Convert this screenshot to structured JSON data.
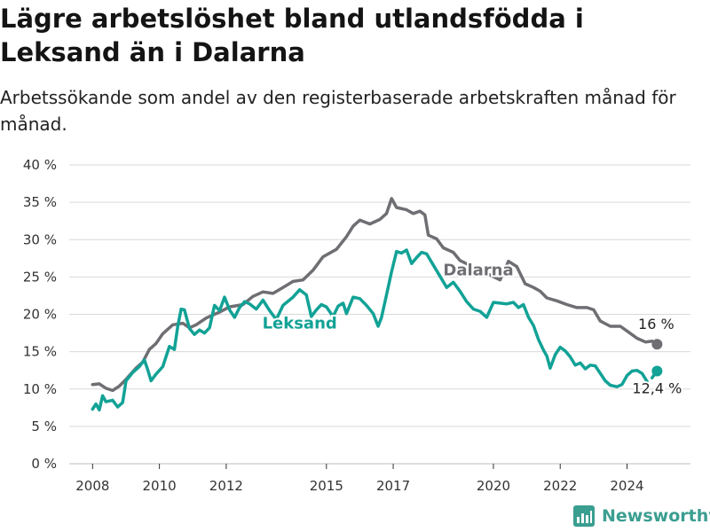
{
  "header": {
    "title": "Lägre arbetslöshet bland utlandsfödda i Leksand än i Dalarna",
    "subtitle": "Arbetssökande som andel av den registerbaserade arbetskraften månad för månad."
  },
  "brand": {
    "name": "Newsworthy"
  },
  "colors": {
    "dalarna": "#6e6e73",
    "leksand": "#12a296",
    "grid": "#d9d9d9",
    "axis": "#333333",
    "brand": "#3a9e90"
  },
  "chart_data": {
    "type": "line",
    "title": "Lägre arbetslöshet bland utlandsfödda i Leksand än i Dalarna",
    "subtitle": "Arbetssökande som andel av den registerbaserade arbetskraften månad för månad.",
    "xlabel": "",
    "ylabel": "",
    "xlim": [
      2007.3,
      2025.9
    ],
    "ylim": [
      0,
      40
    ],
    "yticks": [
      0,
      5,
      10,
      15,
      20,
      25,
      30,
      35,
      40
    ],
    "ytick_labels": [
      "0 %",
      "5 %",
      "10 %",
      "15 %",
      "20 %",
      "25 %",
      "30 %",
      "35 %",
      "40 %"
    ],
    "xticks": [
      2008,
      2010,
      2012,
      2015,
      2017,
      2020,
      2022,
      2024
    ],
    "xtick_labels": [
      "2008",
      "2010",
      "2012",
      "2015",
      "2017",
      "2020",
      "2022",
      "2024"
    ],
    "grid": "horizontal",
    "legend": "none",
    "series": [
      {
        "name": "Dalarna",
        "color": "#6e6e73",
        "end_label": "16 %",
        "points": [
          [
            2008.0,
            10.6
          ],
          [
            2008.2,
            10.7
          ],
          [
            2008.4,
            10.1
          ],
          [
            2008.6,
            9.8
          ],
          [
            2008.8,
            10.4
          ],
          [
            2009.0,
            11.3
          ],
          [
            2009.3,
            12.8
          ],
          [
            2009.5,
            13.6
          ],
          [
            2009.7,
            15.3
          ],
          [
            2009.9,
            16.1
          ],
          [
            2010.1,
            17.4
          ],
          [
            2010.4,
            18.6
          ],
          [
            2010.7,
            18.8
          ],
          [
            2010.9,
            18.2
          ],
          [
            2011.1,
            18.6
          ],
          [
            2011.4,
            19.5
          ],
          [
            2011.8,
            20.3
          ],
          [
            2012.1,
            21.0
          ],
          [
            2012.5,
            21.3
          ],
          [
            2012.8,
            22.4
          ],
          [
            2013.1,
            23.0
          ],
          [
            2013.4,
            22.8
          ],
          [
            2013.7,
            23.6
          ],
          [
            2014.0,
            24.4
          ],
          [
            2014.3,
            24.6
          ],
          [
            2014.6,
            25.9
          ],
          [
            2014.9,
            27.7
          ],
          [
            2015.3,
            28.7
          ],
          [
            2015.6,
            30.4
          ],
          [
            2015.8,
            31.8
          ],
          [
            2016.0,
            32.6
          ],
          [
            2016.3,
            32.1
          ],
          [
            2016.6,
            32.7
          ],
          [
            2016.8,
            33.5
          ],
          [
            2016.95,
            35.5
          ],
          [
            2017.1,
            34.3
          ],
          [
            2017.4,
            34.0
          ],
          [
            2017.6,
            33.5
          ],
          [
            2017.8,
            33.8
          ],
          [
            2017.95,
            33.3
          ],
          [
            2018.05,
            30.6
          ],
          [
            2018.3,
            30.1
          ],
          [
            2018.5,
            28.9
          ],
          [
            2018.8,
            28.3
          ],
          [
            2019.0,
            27.2
          ],
          [
            2020.2,
            24.6
          ],
          [
            2020.45,
            27.1
          ],
          [
            2020.7,
            26.4
          ],
          [
            2020.95,
            24.1
          ],
          [
            2021.2,
            23.6
          ],
          [
            2021.4,
            23.1
          ],
          [
            2021.6,
            22.2
          ],
          [
            2021.9,
            21.8
          ],
          [
            2022.2,
            21.3
          ],
          [
            2022.5,
            20.9
          ],
          [
            2022.8,
            20.9
          ],
          [
            2023.0,
            20.6
          ],
          [
            2023.2,
            19.1
          ],
          [
            2023.5,
            18.4
          ],
          [
            2023.8,
            18.4
          ],
          [
            2024.05,
            17.6
          ],
          [
            2024.3,
            16.8
          ],
          [
            2024.55,
            16.3
          ],
          [
            2024.75,
            16.4
          ],
          [
            2024.9,
            16.0
          ]
        ]
      },
      {
        "name": "Leksand",
        "color": "#12a296",
        "end_label": "12,4 %",
        "points": [
          [
            2008.0,
            7.3
          ],
          [
            2008.1,
            8.0
          ],
          [
            2008.2,
            7.2
          ],
          [
            2008.3,
            9.1
          ],
          [
            2008.4,
            8.3
          ],
          [
            2008.6,
            8.5
          ],
          [
            2008.75,
            7.6
          ],
          [
            2008.9,
            8.2
          ],
          [
            2009.0,
            11.1
          ],
          [
            2009.2,
            12.2
          ],
          [
            2009.4,
            13.0
          ],
          [
            2009.55,
            13.9
          ],
          [
            2009.65,
            12.6
          ],
          [
            2009.75,
            11.1
          ],
          [
            2009.9,
            12.0
          ],
          [
            2010.1,
            13.0
          ],
          [
            2010.3,
            15.7
          ],
          [
            2010.45,
            15.3
          ],
          [
            2010.55,
            18.4
          ],
          [
            2010.65,
            20.7
          ],
          [
            2010.75,
            20.6
          ],
          [
            2010.9,
            18.1
          ],
          [
            2011.05,
            17.3
          ],
          [
            2011.2,
            17.9
          ],
          [
            2011.35,
            17.5
          ],
          [
            2011.5,
            18.2
          ],
          [
            2011.65,
            21.2
          ],
          [
            2011.8,
            20.5
          ],
          [
            2011.95,
            22.3
          ],
          [
            2012.1,
            20.6
          ],
          [
            2012.25,
            19.6
          ],
          [
            2012.4,
            20.9
          ],
          [
            2012.55,
            21.7
          ],
          [
            2012.7,
            21.4
          ],
          [
            2012.9,
            20.7
          ],
          [
            2013.1,
            21.9
          ],
          [
            2013.3,
            20.5
          ],
          [
            2013.5,
            19.3
          ],
          [
            2013.7,
            21.2
          ],
          [
            2014.0,
            22.3
          ],
          [
            2014.2,
            23.3
          ],
          [
            2014.4,
            22.6
          ],
          [
            2014.55,
            19.7
          ],
          [
            2014.7,
            20.6
          ],
          [
            2014.85,
            21.3
          ],
          [
            2015.0,
            21.0
          ],
          [
            2015.2,
            19.7
          ],
          [
            2015.35,
            21.1
          ],
          [
            2015.5,
            21.5
          ],
          [
            2015.6,
            20.1
          ],
          [
            2015.8,
            22.3
          ],
          [
            2016.0,
            22.1
          ],
          [
            2016.2,
            21.2
          ],
          [
            2016.4,
            20.1
          ],
          [
            2016.55,
            18.4
          ],
          [
            2016.65,
            19.6
          ],
          [
            2016.8,
            22.6
          ],
          [
            2016.95,
            25.7
          ],
          [
            2017.1,
            28.4
          ],
          [
            2017.25,
            28.2
          ],
          [
            2017.4,
            28.6
          ],
          [
            2017.55,
            26.8
          ],
          [
            2017.7,
            27.6
          ],
          [
            2017.85,
            28.3
          ],
          [
            2018.0,
            28.1
          ],
          [
            2018.6,
            23.6
          ],
          [
            2018.8,
            24.3
          ],
          [
            2019.0,
            23.1
          ],
          [
            2019.2,
            21.7
          ],
          [
            2019.4,
            20.7
          ],
          [
            2019.6,
            20.4
          ],
          [
            2019.8,
            19.6
          ],
          [
            2020.0,
            21.6
          ],
          [
            2020.2,
            21.5
          ],
          [
            2020.4,
            21.4
          ],
          [
            2020.6,
            21.6
          ],
          [
            2020.75,
            20.9
          ],
          [
            2020.9,
            21.3
          ],
          [
            2021.05,
            19.6
          ],
          [
            2021.2,
            18.5
          ],
          [
            2021.35,
            16.6
          ],
          [
            2021.5,
            15.2
          ],
          [
            2021.6,
            14.4
          ],
          [
            2021.7,
            12.8
          ],
          [
            2021.85,
            14.6
          ],
          [
            2022.0,
            15.6
          ],
          [
            2022.15,
            15.1
          ],
          [
            2022.3,
            14.3
          ],
          [
            2022.45,
            13.2
          ],
          [
            2022.6,
            13.5
          ],
          [
            2022.75,
            12.7
          ],
          [
            2022.9,
            13.2
          ],
          [
            2023.05,
            13.1
          ],
          [
            2023.2,
            12.1
          ],
          [
            2023.35,
            11.1
          ],
          [
            2023.5,
            10.5
          ],
          [
            2023.7,
            10.3
          ],
          [
            2023.85,
            10.6
          ],
          [
            2024.0,
            11.8
          ],
          [
            2024.15,
            12.4
          ],
          [
            2024.3,
            12.5
          ],
          [
            2024.45,
            12.1
          ],
          [
            2024.6,
            11.0
          ]
        ],
        "tail_points": [
          [
            2024.75,
            11.5
          ],
          [
            2024.9,
            12.4
          ]
        ]
      }
    ],
    "annotations": [
      {
        "text": "Dalarna",
        "series": "Dalarna",
        "x": 2019.55,
        "y": 25.2
      },
      {
        "text": "Leksand",
        "series": "Leksand",
        "x": 2014.2,
        "y": 18.1
      }
    ]
  }
}
